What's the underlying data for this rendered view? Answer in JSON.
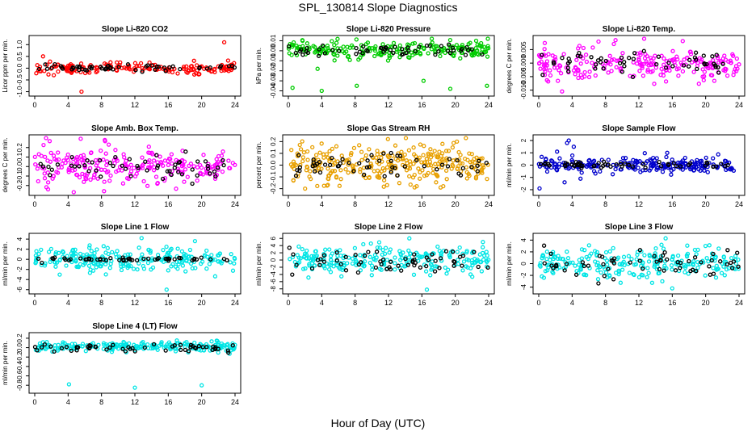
{
  "figure": {
    "title": "SPL_130814  Slope Diagnostics",
    "xlabel": "Hour of Day (UTC)"
  },
  "chart_data": [
    {
      "type": "scatter",
      "title": "Slope Li-820 CO2",
      "ylabel": "Licor ppm per min.",
      "color": "#ff0000",
      "xlim": [
        0,
        24
      ],
      "xticks": [
        0,
        4,
        8,
        12,
        16,
        20,
        24
      ],
      "ylim": [
        -1.05,
        1.25
      ],
      "yticks": [
        -1.0,
        -0.5,
        0.0,
        0.5,
        1.0
      ],
      "ytick_labels": [
        "-1.0",
        "-0.5",
        "0.0",
        "0.5",
        "1.0"
      ],
      "series": [
        {
          "name": "colored",
          "center": 0.0,
          "spread": 0.12,
          "count": 170
        },
        {
          "name": "black",
          "center": 0.0,
          "spread": 0.06,
          "count": 55
        }
      ],
      "outliers": [
        {
          "x": 5.6,
          "y": -1.0
        },
        {
          "x": 22.7,
          "y": 1.1
        },
        {
          "x": 1.0,
          "y": 0.5
        }
      ]
    },
    {
      "type": "scatter",
      "title": "Slope Li-820 Pressure",
      "ylabel": "kPa per min.",
      "color": "#00cc00",
      "xlim": [
        0,
        24
      ],
      "xticks": [
        0,
        4,
        8,
        12,
        16,
        20,
        24
      ],
      "ylim": [
        -0.042,
        0.012
      ],
      "yticks": [
        -0.04,
        -0.03,
        -0.02,
        -0.01,
        0.0,
        0.01
      ],
      "ytick_labels": [
        "-0.04",
        "-0.03",
        "-0.02",
        "-0.01",
        "0.00",
        "0.01"
      ],
      "series": [
        {
          "name": "colored",
          "center": 0.001,
          "spread": 0.004,
          "count": 220
        },
        {
          "name": "black",
          "center": 0.0,
          "spread": 0.0025,
          "count": 55
        }
      ],
      "outliers": [
        {
          "x": 0.5,
          "y": -0.037
        },
        {
          "x": 4.0,
          "y": -0.04
        },
        {
          "x": 8.2,
          "y": -0.035
        },
        {
          "x": 16.2,
          "y": -0.03
        },
        {
          "x": 23.8,
          "y": -0.035
        },
        {
          "x": 19.4,
          "y": -0.038
        },
        {
          "x": 1.7,
          "y": 0.01
        },
        {
          "x": 3.5,
          "y": -0.018
        }
      ]
    },
    {
      "type": "scatter",
      "title": "Slope Li-820 Temp.",
      "ylabel": "degrees C per min.",
      "color": "#ff00ff",
      "xlim": [
        0,
        24
      ],
      "xticks": [
        0,
        4,
        8,
        12,
        16,
        20,
        24
      ],
      "ylim": [
        -0.011,
        0.009
      ],
      "yticks": [
        -0.01,
        -0.005,
        0.0,
        0.005
      ],
      "ytick_labels": [
        "-0.010",
        "-0.005",
        "0.000",
        "0.005"
      ],
      "series": [
        {
          "name": "colored",
          "center": 0.0,
          "spread": 0.003,
          "count": 230
        },
        {
          "name": "black",
          "center": 0.0,
          "spread": 0.002,
          "count": 55
        }
      ],
      "outliers": [
        {
          "x": 9.2,
          "y": 0.0085
        },
        {
          "x": 2.8,
          "y": -0.0105
        }
      ]
    },
    {
      "type": "scatter",
      "title": "Slope Amb. Box Temp.",
      "ylabel": "degrees C per min.",
      "color": "#ff00ff",
      "xlim": [
        0,
        24
      ],
      "xticks": [
        0,
        4,
        8,
        12,
        16,
        20,
        24
      ],
      "ylim": [
        -0.27,
        0.3
      ],
      "yticks": [
        -0.2,
        -0.1,
        0.0,
        0.1,
        0.2
      ],
      "ytick_labels": [
        "-0.2",
        "-0.1",
        "0.0",
        "0.1",
        "0.2"
      ],
      "series": [
        {
          "name": "colored",
          "center": 0.0,
          "spread": 0.1,
          "count": 230
        },
        {
          "name": "black",
          "center": 0.0,
          "spread": 0.07,
          "count": 55
        }
      ],
      "outliers": [
        {
          "x": 8.4,
          "y": 0.28
        },
        {
          "x": 8.3,
          "y": -0.26
        },
        {
          "x": 1.6,
          "y": -0.24
        }
      ]
    },
    {
      "type": "scatter",
      "title": "Slope Gas Stream RH",
      "ylabel": "percent per min.",
      "color": "#e8a000",
      "xlim": [
        0,
        24
      ],
      "xticks": [
        0,
        4,
        8,
        12,
        16,
        20,
        24
      ],
      "ylim": [
        -0.23,
        0.23
      ],
      "yticks": [
        -0.2,
        -0.1,
        0.0,
        0.1,
        0.2
      ],
      "ytick_labels": [
        "-0.2",
        "-0.1",
        "0.0",
        "0.1",
        "0.2"
      ],
      "series": [
        {
          "name": "colored",
          "center": 0.0,
          "spread": 0.08,
          "count": 300
        },
        {
          "name": "black",
          "center": 0.0,
          "spread": 0.05,
          "count": 55
        }
      ],
      "outliers": [
        {
          "x": 2.0,
          "y": -0.2
        },
        {
          "x": 20.2,
          "y": 0.2
        }
      ]
    },
    {
      "type": "scatter",
      "title": "Slope Sample Flow",
      "ylabel": "ml/min per min.",
      "color": "#0000cc",
      "xlim": [
        0,
        24
      ],
      "xticks": [
        0,
        4,
        8,
        12,
        16,
        20,
        24
      ],
      "ylim": [
        -2.2,
        2.2
      ],
      "yticks": [
        -2,
        -1,
        0,
        1,
        2
      ],
      "ytick_labels": [
        "-2",
        "-1",
        "0",
        "1",
        "2"
      ],
      "series": [
        {
          "name": "colored",
          "center": 0.0,
          "spread": 0.3,
          "count": 220
        },
        {
          "name": "black",
          "center": 0.0,
          "spread": 0.12,
          "count": 55
        }
      ],
      "outliers": [
        {
          "x": 0.1,
          "y": -1.9
        },
        {
          "x": 3.6,
          "y": 2.0
        },
        {
          "x": 2.2,
          "y": 1.1
        },
        {
          "x": 4.2,
          "y": 1.5
        },
        {
          "x": 3.1,
          "y": -1.4
        },
        {
          "x": 5.0,
          "y": -1.1
        },
        {
          "x": 15.4,
          "y": 1.0
        },
        {
          "x": 3.4,
          "y": 1.8
        }
      ]
    },
    {
      "type": "scatter",
      "title": "Slope Line 1 Flow",
      "ylabel": "ml/min per min.",
      "color": "#00e5e5",
      "xlim": [
        0,
        24
      ],
      "xticks": [
        0,
        4,
        8,
        12,
        16,
        20,
        24
      ],
      "ylim": [
        -6.2,
        4.5
      ],
      "yticks": [
        -6,
        -4,
        -2,
        0,
        2,
        4
      ],
      "ytick_labels": [
        "-6",
        "-4",
        "-2",
        "0",
        "2",
        "4"
      ],
      "series": [
        {
          "name": "colored",
          "center": 0.0,
          "spread": 1.2,
          "count": 230
        },
        {
          "name": "black",
          "center": 0.0,
          "spread": 0.2,
          "count": 55
        }
      ],
      "outliers": [
        {
          "x": 15.8,
          "y": -6.0
        },
        {
          "x": 12.8,
          "y": 4.2
        },
        {
          "x": 19.2,
          "y": 3.6
        }
      ]
    },
    {
      "type": "scatter",
      "title": "Slope Line 2 Flow",
      "ylabel": "ml/min per min.",
      "color": "#00e5e5",
      "xlim": [
        0,
        24
      ],
      "xticks": [
        0,
        4,
        8,
        12,
        16,
        20,
        24
      ],
      "ylim": [
        -8.5,
        6.5
      ],
      "yticks": [
        -8,
        -6,
        -4,
        -2,
        0,
        2,
        4,
        6
      ],
      "ytick_labels": [
        "-8",
        "-6",
        "-4",
        "-2",
        "0",
        "2",
        "4",
        "6"
      ],
      "series": [
        {
          "name": "colored",
          "center": 0.0,
          "spread": 1.8,
          "count": 240
        },
        {
          "name": "black",
          "center": -0.5,
          "spread": 1.5,
          "count": 60
        }
      ],
      "outliers": [
        {
          "x": 16.6,
          "y": -8.2
        },
        {
          "x": 14.5,
          "y": 6.0
        }
      ]
    },
    {
      "type": "scatter",
      "title": "Slope Line 3 Flow",
      "ylabel": "ml/min per min.",
      "color": "#00e5e5",
      "xlim": [
        0,
        24
      ],
      "xticks": [
        0,
        4,
        8,
        12,
        16,
        20,
        24
      ],
      "ylim": [
        -4.6,
        4.6
      ],
      "yticks": [
        -4,
        -2,
        0,
        2,
        4
      ],
      "ytick_labels": [
        "-4",
        "-2",
        "0",
        "2",
        "4"
      ],
      "series": [
        {
          "name": "colored",
          "center": 0.0,
          "spread": 1.3,
          "count": 240
        },
        {
          "name": "black",
          "center": 0.0,
          "spread": 1.1,
          "count": 60
        }
      ],
      "outliers": [
        {
          "x": 15.2,
          "y": 4.3
        },
        {
          "x": 16.0,
          "y": -4.2
        }
      ]
    },
    {
      "type": "scatter",
      "title": "Slope Line 4 (LT) Flow",
      "ylabel": "ml/min per min.",
      "color": "#00e5e5",
      "xlim": [
        0,
        24
      ],
      "xticks": [
        0,
        4,
        8,
        12,
        16,
        20,
        24
      ],
      "ylim": [
        -0.9,
        0.25
      ],
      "yticks": [
        -0.8,
        -0.6,
        -0.4,
        -0.2,
        0.0,
        0.2
      ],
      "ytick_labels": [
        "-0.8",
        "-0.6",
        "-0.4",
        "-0.2",
        "0.0",
        "0.2"
      ],
      "series": [
        {
          "name": "colored",
          "center": 0.02,
          "spread": 0.05,
          "count": 230
        },
        {
          "name": "black",
          "center": 0.0,
          "spread": 0.05,
          "count": 55
        }
      ],
      "outliers": [
        {
          "x": 4.1,
          "y": -0.78
        },
        {
          "x": 12.0,
          "y": -0.85
        },
        {
          "x": 20.0,
          "y": -0.8
        }
      ]
    }
  ]
}
